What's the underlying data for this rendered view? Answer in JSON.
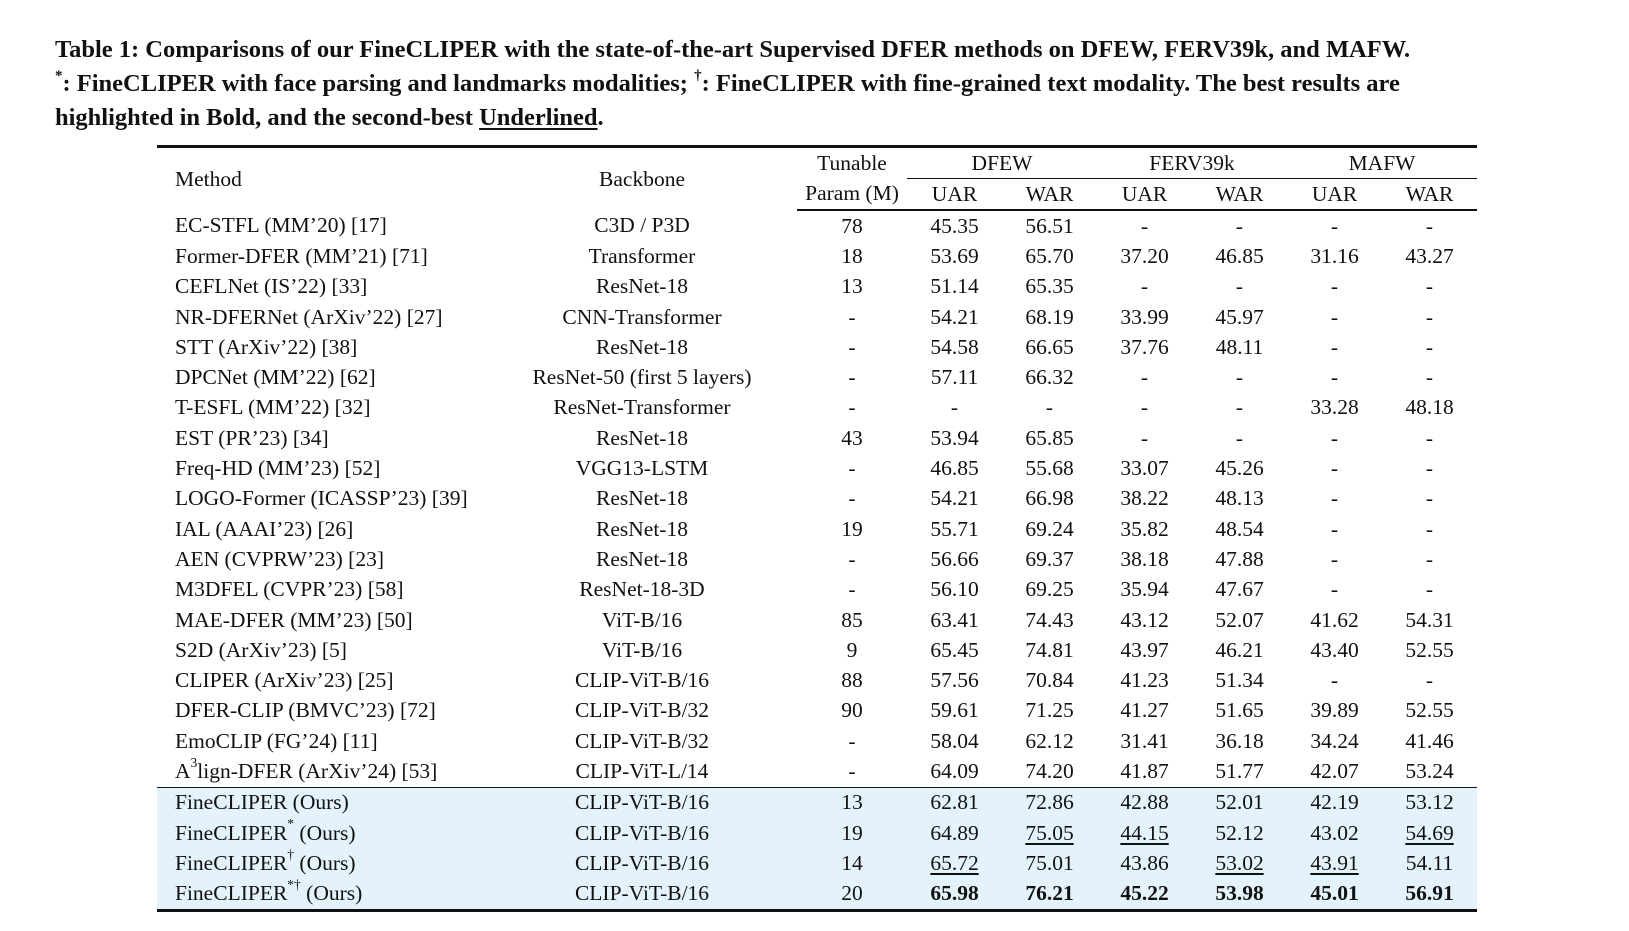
{
  "caption": {
    "line1": "Table 1: Comparisons of our FineCLIPER with the state-of-the-art Supervised DFER methods on DFEW, FERV39k, and MAFW.",
    "star_mark": "*",
    "line2a": ": FineCLIPER with face parsing and landmarks modalities; ",
    "dagger_mark": "†",
    "line2b": ": FineCLIPER with fine-grained text modality. The best results are",
    "line3a": "highlighted in Bold, and the second-best ",
    "underlined_word": "Underlined",
    "line3b": "."
  },
  "header": {
    "method": "Method",
    "backbone": "Backbone",
    "tunable_1": "Tunable",
    "tunable_2": "Param (M)",
    "groups": [
      "DFEW",
      "FERV39k",
      "MAFW"
    ],
    "uar": "UAR",
    "war": "WAR"
  },
  "rows": [
    {
      "method": "EC-STFL (MM’20) [17]",
      "backbone": "C3D / P3D",
      "param": "78",
      "vals": [
        "45.35",
        "56.51",
        "-",
        "-",
        "-",
        "-"
      ]
    },
    {
      "method": "Former-DFER (MM’21) [71]",
      "backbone": "Transformer",
      "param": "18",
      "vals": [
        "53.69",
        "65.70",
        "37.20",
        "46.85",
        "31.16",
        "43.27"
      ]
    },
    {
      "method": "CEFLNet (IS’22) [33]",
      "backbone": "ResNet-18",
      "param": "13",
      "vals": [
        "51.14",
        "65.35",
        "-",
        "-",
        "-",
        "-"
      ]
    },
    {
      "method": "NR-DFERNet (ArXiv’22) [27]",
      "backbone": "CNN-Transformer",
      "param": "-",
      "vals": [
        "54.21",
        "68.19",
        "33.99",
        "45.97",
        "-",
        "-"
      ]
    },
    {
      "method": "STT (ArXiv’22) [38]",
      "backbone": "ResNet-18",
      "param": "-",
      "vals": [
        "54.58",
        "66.65",
        "37.76",
        "48.11",
        "-",
        "-"
      ]
    },
    {
      "method": "DPCNet (MM’22) [62]",
      "backbone": "ResNet-50 (first 5 layers)",
      "param": "-",
      "vals": [
        "57.11",
        "66.32",
        "-",
        "-",
        "-",
        "-"
      ]
    },
    {
      "method": "T-ESFL (MM’22) [32]",
      "backbone": "ResNet-Transformer",
      "param": "-",
      "vals": [
        "-",
        "-",
        "-",
        "-",
        "33.28",
        "48.18"
      ]
    },
    {
      "method": "EST (PR’23) [34]",
      "backbone": "ResNet-18",
      "param": "43",
      "vals": [
        "53.94",
        "65.85",
        "-",
        "-",
        "-",
        "-"
      ]
    },
    {
      "method": "Freq-HD (MM’23) [52]",
      "backbone": "VGG13-LSTM",
      "param": "-",
      "vals": [
        "46.85",
        "55.68",
        "33.07",
        "45.26",
        "-",
        "-"
      ]
    },
    {
      "method": "LOGO-Former (ICASSP’23) [39]",
      "backbone": "ResNet-18",
      "param": "-",
      "vals": [
        "54.21",
        "66.98",
        "38.22",
        "48.13",
        "-",
        "-"
      ]
    },
    {
      "method": "IAL (AAAI’23) [26]",
      "backbone": "ResNet-18",
      "param": "19",
      "vals": [
        "55.71",
        "69.24",
        "35.82",
        "48.54",
        "-",
        "-"
      ]
    },
    {
      "method": "AEN (CVPRW’23) [23]",
      "backbone": "ResNet-18",
      "param": "-",
      "vals": [
        "56.66",
        "69.37",
        "38.18",
        "47.88",
        "-",
        "-"
      ]
    },
    {
      "method": "M3DFEL (CVPR’23) [58]",
      "backbone": "ResNet-18-3D",
      "param": "-",
      "vals": [
        "56.10",
        "69.25",
        "35.94",
        "47.67",
        "-",
        "-"
      ]
    },
    {
      "method": "MAE-DFER (MM’23) [50]",
      "backbone": "ViT-B/16",
      "param": "85",
      "vals": [
        "63.41",
        "74.43",
        "43.12",
        "52.07",
        "41.62",
        "54.31"
      ]
    },
    {
      "method": "S2D (ArXiv’23) [5]",
      "backbone": "ViT-B/16",
      "param": "9",
      "vals": [
        "65.45",
        "74.81",
        "43.97",
        "46.21",
        "43.40",
        "52.55"
      ]
    },
    {
      "method": "CLIPER (ArXiv’23) [25]",
      "backbone": "CLIP-ViT-B/16",
      "param": "88",
      "vals": [
        "57.56",
        "70.84",
        "41.23",
        "51.34",
        "-",
        "-"
      ]
    },
    {
      "method": "DFER-CLIP (BMVC’23) [72]",
      "backbone": "CLIP-ViT-B/32",
      "param": "90",
      "vals": [
        "59.61",
        "71.25",
        "41.27",
        "51.65",
        "39.89",
        "52.55"
      ]
    },
    {
      "method": "EmoCLIP (FG’24) [11]",
      "backbone": "CLIP-ViT-B/32",
      "param": "-",
      "vals": [
        "58.04",
        "62.12",
        "31.41",
        "36.18",
        "34.24",
        "41.46"
      ]
    },
    {
      "method_a": "A",
      "method_sup": "3",
      "method_b": "lign-DFER (ArXiv’24) [53]",
      "backbone": "CLIP-ViT-L/14",
      "param": "-",
      "vals": [
        "64.09",
        "74.20",
        "41.87",
        "51.77",
        "42.07",
        "53.24"
      ]
    }
  ],
  "ours": [
    {
      "name": "FineCLIPER",
      "mark": "",
      "suffix": " (Ours)",
      "backbone": "CLIP-ViT-B/16",
      "param": "13",
      "vals": [
        "62.81",
        "72.86",
        "42.88",
        "52.01",
        "42.19",
        "53.12"
      ],
      "style": [
        "",
        "",
        "",
        "",
        "",
        ""
      ]
    },
    {
      "name": "FineCLIPER",
      "mark": "*",
      "suffix": " (Ours)",
      "backbone": "CLIP-ViT-B/16",
      "param": "19",
      "vals": [
        "64.89",
        "75.05",
        "44.15",
        "52.12",
        "43.02",
        "54.69"
      ],
      "style": [
        "",
        "second",
        "second",
        "",
        "",
        "second"
      ]
    },
    {
      "name": "FineCLIPER",
      "mark": "†",
      "suffix": " (Ours)",
      "backbone": "CLIP-ViT-B/16",
      "param": "14",
      "vals": [
        "65.72",
        "75.01",
        "43.86",
        "53.02",
        "43.91",
        "54.11"
      ],
      "style": [
        "second",
        "",
        "",
        "second",
        "second",
        ""
      ]
    },
    {
      "name": "FineCLIPER",
      "mark": "*†",
      "suffix": " (Ours)",
      "backbone": "CLIP-ViT-B/16",
      "param": "20",
      "vals": [
        "65.98",
        "76.21",
        "45.22",
        "53.98",
        "45.01",
        "56.91"
      ],
      "style": [
        "best",
        "best",
        "best",
        "best",
        "best",
        "best"
      ]
    }
  ]
}
